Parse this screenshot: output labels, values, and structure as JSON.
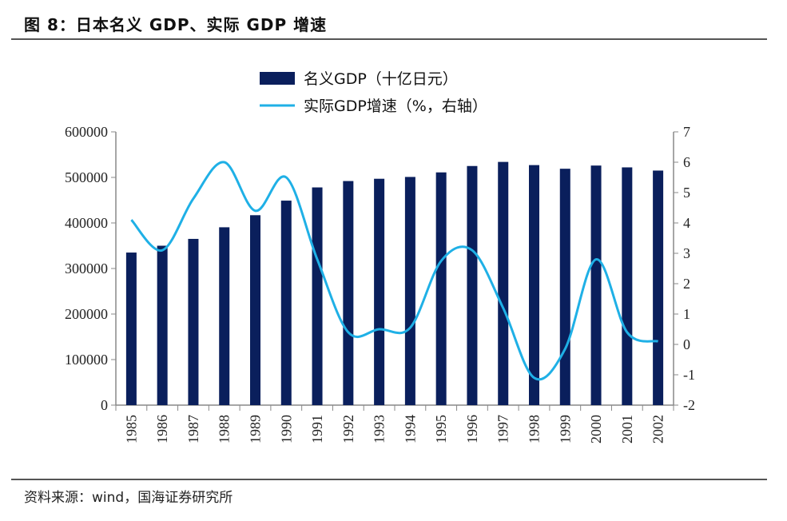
{
  "title": "图 8：日本名义 GDP、实际 GDP 增速",
  "source": "资料来源：wind，国海证券研究所",
  "chart_data": {
    "type": "bar+line",
    "categories": [
      "1985",
      "1986",
      "1987",
      "1988",
      "1989",
      "1990",
      "1991",
      "1992",
      "1993",
      "1994",
      "1995",
      "1996",
      "1997",
      "1998",
      "1999",
      "2000",
      "2001",
      "2002"
    ],
    "series": [
      {
        "name": "名义GDP（十亿日元）",
        "type": "bar",
        "axis": "left",
        "color": "#0a1f5c",
        "values": [
          335000,
          350000,
          365000,
          390500,
          417000,
          449000,
          478000,
          492000,
          497000,
          501000,
          511000,
          525000,
          534000,
          527000,
          519000,
          526000,
          522000,
          515000
        ]
      },
      {
        "name": "实际GDP增速（%，右轴）",
        "type": "line",
        "axis": "right",
        "color": "#1fb0e6",
        "values": [
          4.1,
          3.1,
          4.8,
          6.0,
          4.4,
          5.5,
          2.8,
          0.4,
          0.5,
          0.55,
          2.75,
          3.1,
          1.2,
          -1.1,
          -0.15,
          2.8,
          0.4,
          0.1
        ]
      }
    ],
    "y_left": {
      "range": [
        0,
        600000
      ],
      "ticks": [
        "0",
        "100000",
        "200000",
        "300000",
        "400000",
        "500000",
        "600000"
      ]
    },
    "y_right": {
      "range": [
        -2,
        7
      ],
      "ticks": [
        "-2",
        "-1",
        "0",
        "1",
        "2",
        "3",
        "4",
        "5",
        "6",
        "7"
      ]
    },
    "grid": false,
    "legend": "top-center"
  }
}
